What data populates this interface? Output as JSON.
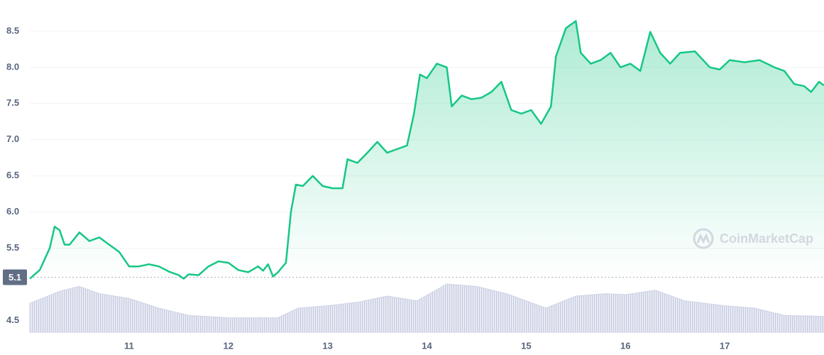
{
  "chart_data": {
    "type": "line",
    "x": [
      10.0,
      10.1,
      10.2,
      10.25,
      10.3,
      10.35,
      10.4,
      10.5,
      10.6,
      10.7,
      10.8,
      10.9,
      11.0,
      11.1,
      11.2,
      11.3,
      11.4,
      11.5,
      11.55,
      11.6,
      11.7,
      11.8,
      11.9,
      12.0,
      12.1,
      12.2,
      12.3,
      12.35,
      12.4,
      12.45,
      12.5,
      12.58,
      12.63,
      12.68,
      12.75,
      12.85,
      12.95,
      13.05,
      13.15,
      13.2,
      13.3,
      13.4,
      13.5,
      13.6,
      13.7,
      13.8,
      13.87,
      13.93,
      14.0,
      14.1,
      14.2,
      14.25,
      14.35,
      14.45,
      14.55,
      14.65,
      14.75,
      14.85,
      14.95,
      15.05,
      15.15,
      15.25,
      15.3,
      15.4,
      15.5,
      15.55,
      15.65,
      15.75,
      15.85,
      15.95,
      16.05,
      16.15,
      16.25,
      16.35,
      16.45,
      16.55,
      16.7,
      16.85,
      16.95,
      17.05,
      17.2,
      17.35,
      17.5,
      17.6,
      17.7,
      17.8,
      17.87,
      17.95,
      18.0
    ],
    "series": [
      {
        "color": "#16c784",
        "values": [
          5.08,
          5.2,
          5.5,
          5.8,
          5.75,
          5.55,
          5.55,
          5.72,
          5.6,
          5.65,
          5.55,
          5.45,
          5.25,
          5.25,
          5.28,
          5.25,
          5.18,
          5.13,
          5.08,
          5.14,
          5.13,
          5.25,
          5.32,
          5.3,
          5.2,
          5.17,
          5.25,
          5.19,
          5.28,
          5.11,
          5.17,
          5.3,
          6.0,
          6.38,
          6.36,
          6.5,
          6.36,
          6.33,
          6.33,
          6.73,
          6.68,
          6.82,
          6.97,
          6.82,
          6.87,
          6.92,
          7.36,
          7.9,
          7.85,
          8.05,
          8.0,
          7.46,
          7.61,
          7.56,
          7.58,
          7.66,
          7.8,
          7.41,
          7.36,
          7.41,
          7.22,
          7.46,
          8.15,
          8.54,
          8.64,
          8.2,
          8.05,
          8.1,
          8.2,
          8.0,
          8.05,
          7.95,
          8.49,
          8.2,
          8.05,
          8.2,
          8.22,
          8.0,
          7.97,
          8.1,
          8.07,
          8.1,
          8.0,
          7.95,
          7.77,
          7.74,
          7.66,
          7.8,
          7.75
        ]
      }
    ],
    "volume": {
      "color": "#cfd3e6",
      "x": [
        10.0,
        10.3,
        10.5,
        10.7,
        11.0,
        11.3,
        11.6,
        12.0,
        12.5,
        12.7,
        13.0,
        13.3,
        13.6,
        13.9,
        14.2,
        14.5,
        14.8,
        15.2,
        15.5,
        15.8,
        16.0,
        16.3,
        16.6,
        17.0,
        17.3,
        17.6,
        18.0
      ],
      "values": [
        60,
        85,
        95,
        80,
        70,
        50,
        35,
        30,
        30,
        50,
        55,
        62,
        75,
        65,
        100,
        95,
        80,
        50,
        75,
        80,
        78,
        87,
        65,
        55,
        50,
        35,
        33
      ]
    },
    "y2lim": [
      0,
      100
    ],
    "xlim": [
      10,
      18
    ],
    "xticks": [
      11,
      12,
      13,
      14,
      15,
      16,
      17
    ],
    "ylim": [
      4.34,
      8.93
    ],
    "yticks": [
      4.5,
      5.5,
      {
        "value": 6,
        "label": "6.0"
      },
      6.5,
      {
        "value": 7,
        "label": "7.0"
      },
      7.5,
      {
        "value": 8,
        "label": "8.0"
      },
      8.5
    ],
    "grid": true,
    "reference": {
      "value": 5.1,
      "label": "5.1"
    },
    "watermark": "CoinMarketCap"
  }
}
